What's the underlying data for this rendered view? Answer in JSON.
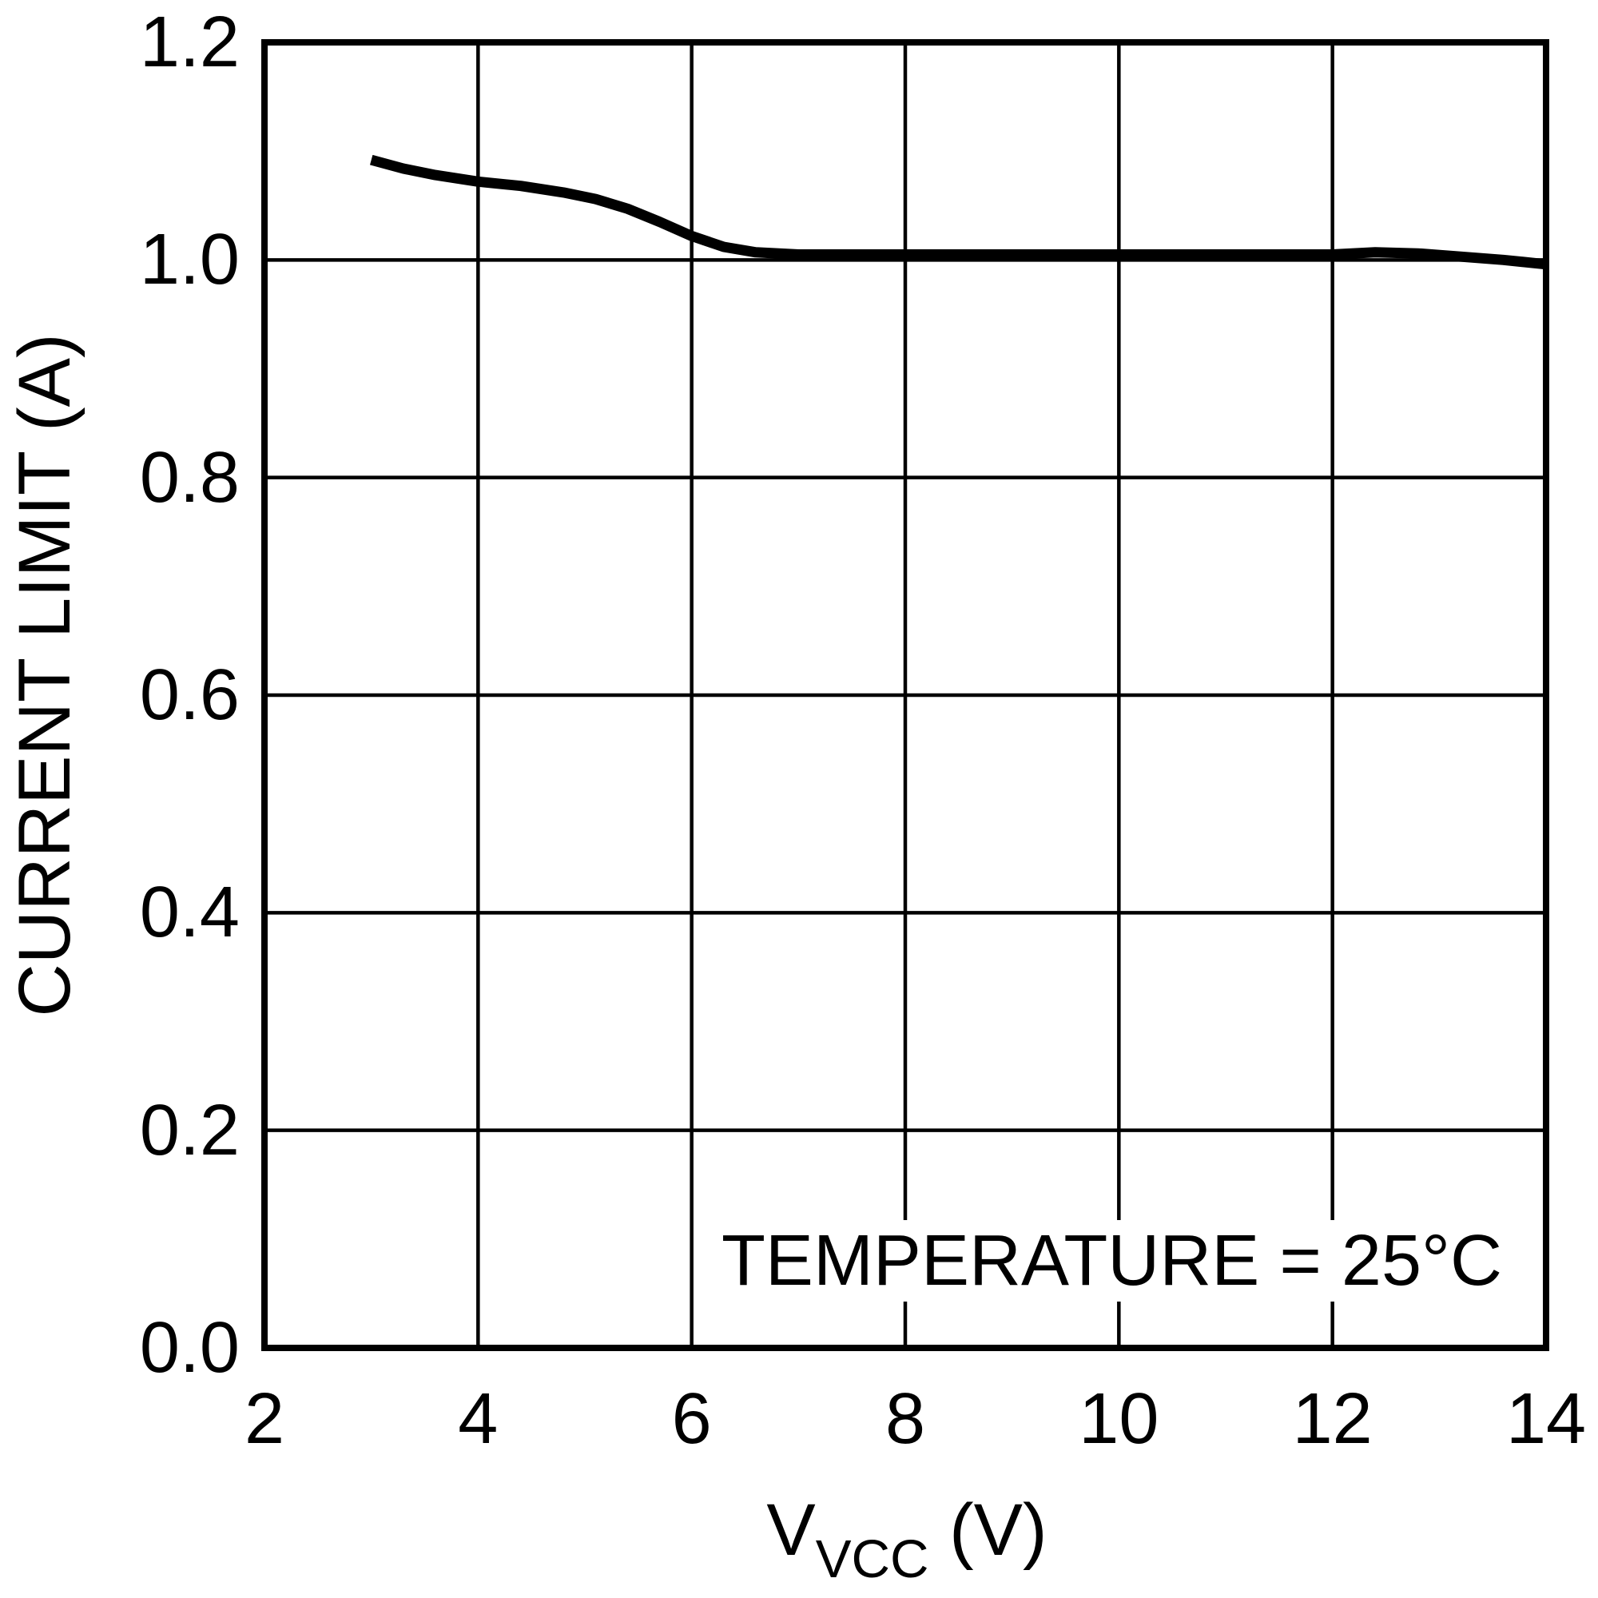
{
  "chart_data": {
    "type": "line",
    "title": "",
    "ylabel": "CURRENT LIMIT (A)",
    "xlabel_main": "V",
    "xlabel_sub": "VCC",
    "xlabel_suffix": " (V)",
    "annotation": "TEMPERATURE = 25°C",
    "xlim": [
      2,
      14
    ],
    "ylim": [
      0.0,
      1.2
    ],
    "x_ticks": [
      "2",
      "4",
      "6",
      "8",
      "10",
      "12",
      "14"
    ],
    "y_ticks": [
      "0.0",
      "0.2",
      "0.4",
      "0.6",
      "0.8",
      "1.0",
      "1.2"
    ],
    "grid": true,
    "legend_position": "none",
    "line_color": "#000000",
    "frame_color": "#000000",
    "background": "#ffffff",
    "series": [
      {
        "name": "current-limit-vs-vcc",
        "x": [
          3.0,
          3.3,
          3.6,
          4.0,
          4.4,
          4.8,
          5.1,
          5.4,
          5.7,
          6.0,
          6.3,
          6.6,
          7.0,
          8.0,
          9.0,
          10.0,
          11.0,
          12.0,
          12.4,
          12.8,
          13.2,
          13.6,
          14.0
        ],
        "y": [
          1.092,
          1.084,
          1.078,
          1.072,
          1.068,
          1.062,
          1.056,
          1.047,
          1.035,
          1.022,
          1.012,
          1.007,
          1.005,
          1.005,
          1.005,
          1.005,
          1.005,
          1.005,
          1.007,
          1.006,
          1.003,
          1.0,
          0.996
        ]
      }
    ]
  }
}
